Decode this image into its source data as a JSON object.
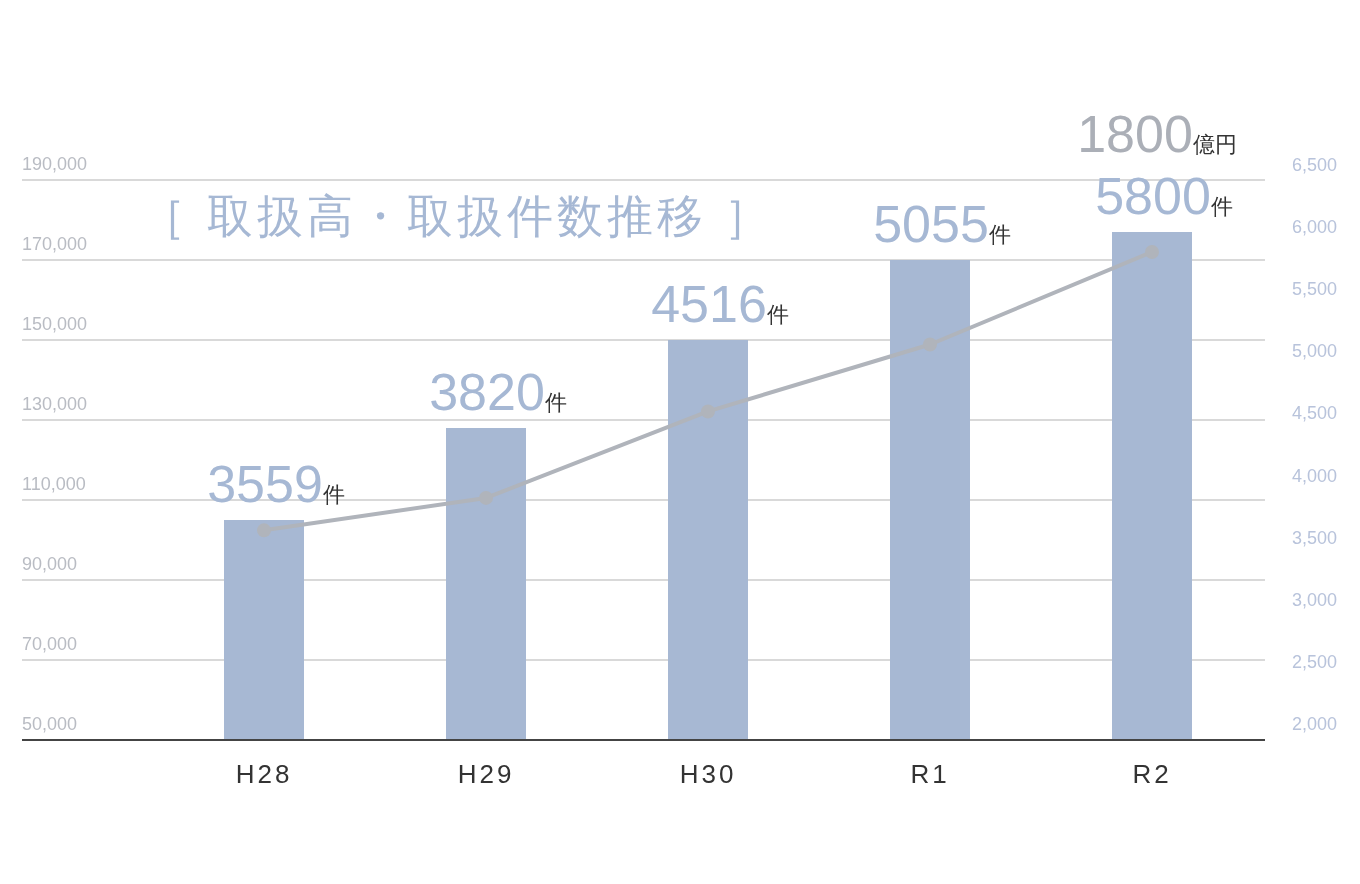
{
  "chart_data": {
    "type": "bar",
    "title": "［ 取扱高・取扱件数推移 ］",
    "categories": [
      "H28",
      "H29",
      "H30",
      "R1",
      "R2"
    ],
    "series": [
      {
        "color": "#a7b8d3",
        "values": [
          105000,
          128000,
          150000,
          170000,
          177000
        ]
      },
      {
        "type": "line",
        "axis": "y2",
        "color": "#b0b4bb",
        "marker": "circle",
        "values": [
          3559,
          3820,
          4516,
          5055,
          5800
        ],
        "value_labels": [
          "3559件",
          "3820件",
          "4516件",
          "5055件",
          "5800件"
        ]
      }
    ],
    "ylim": [
      50000,
      190000
    ],
    "yticks": [
      {
        "value": 50000,
        "label": "50,000"
      },
      {
        "value": 70000,
        "label": "70,000"
      },
      {
        "value": 90000,
        "label": "90,000"
      },
      {
        "value": 110000,
        "label": "110,000"
      },
      {
        "value": 130000,
        "label": "130,000"
      },
      {
        "value": 150000,
        "label": "150,000"
      },
      {
        "value": 170000,
        "label": "170,000"
      },
      {
        "value": 190000,
        "label": "190,000"
      }
    ],
    "y2lim": [
      2000,
      6500
    ],
    "y2ticks": [
      {
        "value": 2000,
        "label": "2,000"
      },
      {
        "value": 2500,
        "label": "2,500"
      },
      {
        "value": 3000,
        "label": "3,000"
      },
      {
        "value": 3500,
        "label": "3,500"
      },
      {
        "value": 4000,
        "label": "4,000"
      },
      {
        "value": 4500,
        "label": "4,500"
      },
      {
        "value": 5000,
        "label": "5,000"
      },
      {
        "value": 5500,
        "label": "5,500"
      },
      {
        "value": 6000,
        "label": "6,000"
      },
      {
        "value": 6500,
        "label": "6,500"
      }
    ],
    "annotations": [
      {
        "text": "1800億円",
        "x": "R2",
        "y": 177000
      }
    ],
    "grid": "y"
  }
}
